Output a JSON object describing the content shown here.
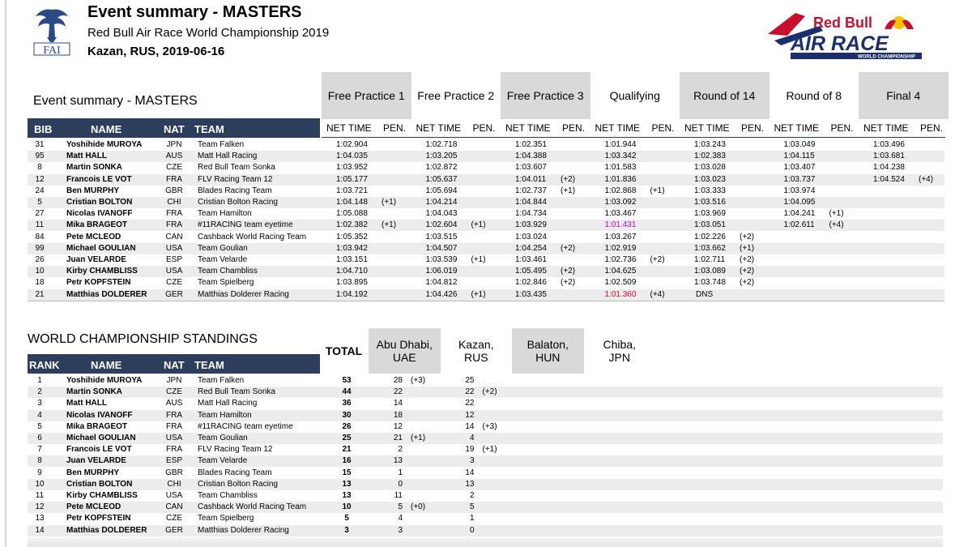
{
  "header": {
    "title": "Event summary - MASTERS",
    "subtitle": "Red Bull Air Race World Championship 2019",
    "place_date": "Kazan, RUS, 2019-06-16",
    "fai_logo_text": "FAI",
    "redbull_logo_text": "Red Bull",
    "airrace_logo_text": "AIR RACE",
    "airrace_logo_sub": "WORLD CHAMPIONSHIP"
  },
  "event_summary": {
    "section_title": "Event summary - MASTERS",
    "columns": {
      "bib": "BIB",
      "name": "NAME",
      "nat": "NAT",
      "team": "TEAM",
      "net_time": "NET TIME",
      "pen": "PEN."
    },
    "stages": [
      "Free Practice 1",
      "Free Practice 2",
      "Free Practice 3",
      "Qualifying",
      "Round of 14",
      "Round of 8",
      "Final 4"
    ],
    "rows": [
      {
        "bib": "31",
        "name": "Yoshihide MUROYA",
        "nat": "JPN",
        "team": "Team Falken",
        "results": [
          [
            "1:02.904",
            ""
          ],
          [
            "1:02.718",
            ""
          ],
          [
            "1:02.351",
            ""
          ],
          [
            "1:01.944",
            ""
          ],
          [
            "1:03.243",
            ""
          ],
          [
            "1:03.049",
            ""
          ],
          [
            "1:03.496",
            ""
          ]
        ]
      },
      {
        "bib": "95",
        "name": "Matt HALL",
        "nat": "AUS",
        "team": "Matt Hall Racing",
        "results": [
          [
            "1:04.035",
            ""
          ],
          [
            "1:03.205",
            ""
          ],
          [
            "1:04.388",
            ""
          ],
          [
            "1:03.342",
            ""
          ],
          [
            "1:02.383",
            ""
          ],
          [
            "1:04.115",
            ""
          ],
          [
            "1:03.681",
            ""
          ]
        ]
      },
      {
        "bib": "8",
        "name": "Martin SONKA",
        "nat": "CZE",
        "team": "Red Bull Team Sonka",
        "results": [
          [
            "1:03.952",
            ""
          ],
          [
            "1:02.872",
            ""
          ],
          [
            "1:03.607",
            ""
          ],
          [
            "1:01.583",
            ""
          ],
          [
            "1:03.028",
            ""
          ],
          [
            "1:03.407",
            ""
          ],
          [
            "1:04.238",
            ""
          ]
        ]
      },
      {
        "bib": "12",
        "name": "Francois LE VOT",
        "nat": "FRA",
        "team": "FLV Racing Team 12",
        "results": [
          [
            "1:05.177",
            ""
          ],
          [
            "1:05.637",
            ""
          ],
          [
            "1:04.011",
            "(+2)"
          ],
          [
            "1:01.836",
            ""
          ],
          [
            "1:03.023",
            ""
          ],
          [
            "1:03.737",
            ""
          ],
          [
            "1:04.524",
            "(+4)"
          ]
        ]
      },
      {
        "bib": "24",
        "name": "Ben MURPHY",
        "nat": "GBR",
        "team": "Blades Racing Team",
        "results": [
          [
            "1:03.721",
            ""
          ],
          [
            "1:05.694",
            ""
          ],
          [
            "1:02.737",
            "(+1)"
          ],
          [
            "1:02.868",
            "(+1)"
          ],
          [
            "1:03.333",
            ""
          ],
          [
            "1:03.974",
            ""
          ],
          [
            "",
            ""
          ]
        ]
      },
      {
        "bib": "5",
        "name": "Cristian BOLTON",
        "nat": "CHI",
        "team": "Cristian Bolton Racing",
        "results": [
          [
            "1:04.148",
            "(+1)"
          ],
          [
            "1:04.214",
            ""
          ],
          [
            "1:04.844",
            ""
          ],
          [
            "1:03.092",
            ""
          ],
          [
            "1:03.516",
            ""
          ],
          [
            "1:04.095",
            ""
          ],
          [
            "",
            ""
          ]
        ]
      },
      {
        "bib": "27",
        "name": "Nicolas IVANOFF",
        "nat": "FRA",
        "team": "Team Hamilton",
        "results": [
          [
            "1:05.088",
            ""
          ],
          [
            "1:04.043",
            ""
          ],
          [
            "1:04.734",
            ""
          ],
          [
            "1:03.467",
            ""
          ],
          [
            "1:03.969",
            ""
          ],
          [
            "1:04.241",
            "(+1)"
          ],
          [
            "",
            ""
          ]
        ]
      },
      {
        "bib": "11",
        "name": "Mika BRAGEOT",
        "nat": "FRA",
        "team": "#11RACING team eyetime",
        "results": [
          [
            "1:02.382",
            "(+1)"
          ],
          [
            "1:02.604",
            "(+1)"
          ],
          [
            "1:03.929",
            ""
          ],
          [
            "1:01.431",
            ""
          ],
          [
            "1:03.051",
            ""
          ],
          [
            "1:02.611",
            "(+4)"
          ],
          [
            "",
            ""
          ]
        ]
      },
      {
        "bib": "84",
        "name": "Pete MCLEOD",
        "nat": "CAN",
        "team": "Cashback World Racing Team",
        "results": [
          [
            "1:05.352",
            ""
          ],
          [
            "1:03.515",
            ""
          ],
          [
            "1:03.024",
            ""
          ],
          [
            "1:03.267",
            ""
          ],
          [
            "1:02.226",
            "(+2)"
          ],
          [
            "",
            ""
          ],
          [
            "",
            ""
          ]
        ]
      },
      {
        "bib": "99",
        "name": "Michael GOULIAN",
        "nat": "USA",
        "team": "Team Goulian",
        "results": [
          [
            "1:03.942",
            ""
          ],
          [
            "1:04.507",
            ""
          ],
          [
            "1:04.254",
            "(+2)"
          ],
          [
            "1:02.919",
            ""
          ],
          [
            "1:03.662",
            "(+1)"
          ],
          [
            "",
            ""
          ],
          [
            "",
            ""
          ]
        ]
      },
      {
        "bib": "26",
        "name": "Juan VELARDE",
        "nat": "ESP",
        "team": "Team Velarde",
        "results": [
          [
            "1:03.151",
            ""
          ],
          [
            "1:03.539",
            "(+1)"
          ],
          [
            "1:03.461",
            ""
          ],
          [
            "1:02.736",
            "(+2)"
          ],
          [
            "1:02.711",
            "(+2)"
          ],
          [
            "",
            ""
          ],
          [
            "",
            ""
          ]
        ]
      },
      {
        "bib": "10",
        "name": "Kirby CHAMBLISS",
        "nat": "USA",
        "team": "Team Chambliss",
        "results": [
          [
            "1:04.710",
            ""
          ],
          [
            "1:06.019",
            ""
          ],
          [
            "1:05.495",
            "(+2)"
          ],
          [
            "1:04.625",
            ""
          ],
          [
            "1:03.089",
            "(+2)"
          ],
          [
            "",
            ""
          ],
          [
            "",
            ""
          ]
        ]
      },
      {
        "bib": "18",
        "name": "Petr KOPFSTEIN",
        "nat": "CZE",
        "team": "Team Spielberg",
        "results": [
          [
            "1:03.895",
            ""
          ],
          [
            "1:04.812",
            ""
          ],
          [
            "1:02.846",
            "(+2)"
          ],
          [
            "1:02.509",
            ""
          ],
          [
            "1:03.748",
            "(+2)"
          ],
          [
            "",
            ""
          ],
          [
            "",
            ""
          ]
        ]
      },
      {
        "bib": "21",
        "name": "Matthias DOLDERER",
        "nat": "GER",
        "team": "Matthias Dolderer Racing",
        "results": [
          [
            "1:04.192",
            ""
          ],
          [
            "1:04.426",
            "(+1)"
          ],
          [
            "1:03.435",
            ""
          ],
          [
            "1:01.360",
            "(+4)"
          ],
          [
            "DNS",
            ""
          ],
          [
            "",
            ""
          ],
          [
            "",
            ""
          ]
        ]
      }
    ],
    "highlight_colors": {
      "best_qualifying": "#cc00cc",
      "fastest_qualifying": "#e8002a"
    }
  },
  "standings": {
    "section_title": "WORLD CHAMPIONSHIP STANDINGS",
    "columns": {
      "rank": "RANK",
      "name": "NAME",
      "nat": "NAT",
      "team": "TEAM",
      "total": "TOTAL"
    },
    "races": [
      {
        "city": "Abu Dhabi,",
        "country": "UAE"
      },
      {
        "city": "Kazan,",
        "country": "RUS"
      },
      {
        "city": "Balaton,",
        "country": "HUN"
      },
      {
        "city": "Chiba,",
        "country": "JPN"
      }
    ],
    "rows": [
      {
        "rank": "1",
        "name": "Yoshihide MUROYA",
        "nat": "JPN",
        "team": "Team Falken",
        "total": "53",
        "points": [
          [
            "28",
            "(+3)"
          ],
          [
            "25",
            ""
          ]
        ]
      },
      {
        "rank": "2",
        "name": "Martin SONKA",
        "nat": "CZE",
        "team": "Red Bull Team Sonka",
        "total": "44",
        "points": [
          [
            "22",
            ""
          ],
          [
            "22",
            "(+2)"
          ]
        ]
      },
      {
        "rank": "3",
        "name": "Matt HALL",
        "nat": "AUS",
        "team": "Matt Hall Racing",
        "total": "36",
        "points": [
          [
            "14",
            ""
          ],
          [
            "22",
            ""
          ]
        ]
      },
      {
        "rank": "4",
        "name": "Nicolas IVANOFF",
        "nat": "FRA",
        "team": "Team Hamilton",
        "total": "30",
        "points": [
          [
            "18",
            ""
          ],
          [
            "12",
            ""
          ]
        ]
      },
      {
        "rank": "5",
        "name": "Mika BRAGEOT",
        "nat": "FRA",
        "team": "#11RACING team eyetime",
        "total": "26",
        "points": [
          [
            "12",
            ""
          ],
          [
            "14",
            "(+3)"
          ]
        ]
      },
      {
        "rank": "6",
        "name": "Michael GOULIAN",
        "nat": "USA",
        "team": "Team Goulian",
        "total": "25",
        "points": [
          [
            "21",
            "(+1)"
          ],
          [
            "4",
            ""
          ]
        ]
      },
      {
        "rank": "7",
        "name": "Francois LE VOT",
        "nat": "FRA",
        "team": "FLV Racing Team 12",
        "total": "21",
        "points": [
          [
            "2",
            ""
          ],
          [
            "19",
            "(+1)"
          ]
        ]
      },
      {
        "rank": "8",
        "name": "Juan VELARDE",
        "nat": "ESP",
        "team": "Team Velarde",
        "total": "16",
        "points": [
          [
            "13",
            ""
          ],
          [
            "3",
            ""
          ]
        ]
      },
      {
        "rank": "9",
        "name": "Ben MURPHY",
        "nat": "GBR",
        "team": "Blades Racing Team",
        "total": "15",
        "points": [
          [
            "1",
            ""
          ],
          [
            "14",
            ""
          ]
        ]
      },
      {
        "rank": "10",
        "name": "Cristian BOLTON",
        "nat": "CHI",
        "team": "Cristian Bolton Racing",
        "total": "13",
        "points": [
          [
            "0",
            ""
          ],
          [
            "13",
            ""
          ]
        ]
      },
      {
        "rank": "11",
        "name": "Kirby CHAMBLISS",
        "nat": "USA",
        "team": "Team Chambliss",
        "total": "13",
        "points": [
          [
            "11",
            ""
          ],
          [
            "2",
            ""
          ]
        ]
      },
      {
        "rank": "12",
        "name": "Pete MCLEOD",
        "nat": "CAN",
        "team": "Cashback World Racing Team",
        "total": "10",
        "points": [
          [
            "5",
            "(+0)"
          ],
          [
            "5",
            ""
          ]
        ]
      },
      {
        "rank": "13",
        "name": "Petr KOPFSTEIN",
        "nat": "CZE",
        "team": "Team Spielberg",
        "total": "5",
        "points": [
          [
            "4",
            ""
          ],
          [
            "1",
            ""
          ]
        ]
      },
      {
        "rank": "14",
        "name": "Matthias DOLDERER",
        "nat": "GER",
        "team": "Matthias Dolderer Racing",
        "total": "3",
        "points": [
          [
            "3",
            ""
          ],
          [
            "0",
            ""
          ]
        ]
      }
    ]
  }
}
